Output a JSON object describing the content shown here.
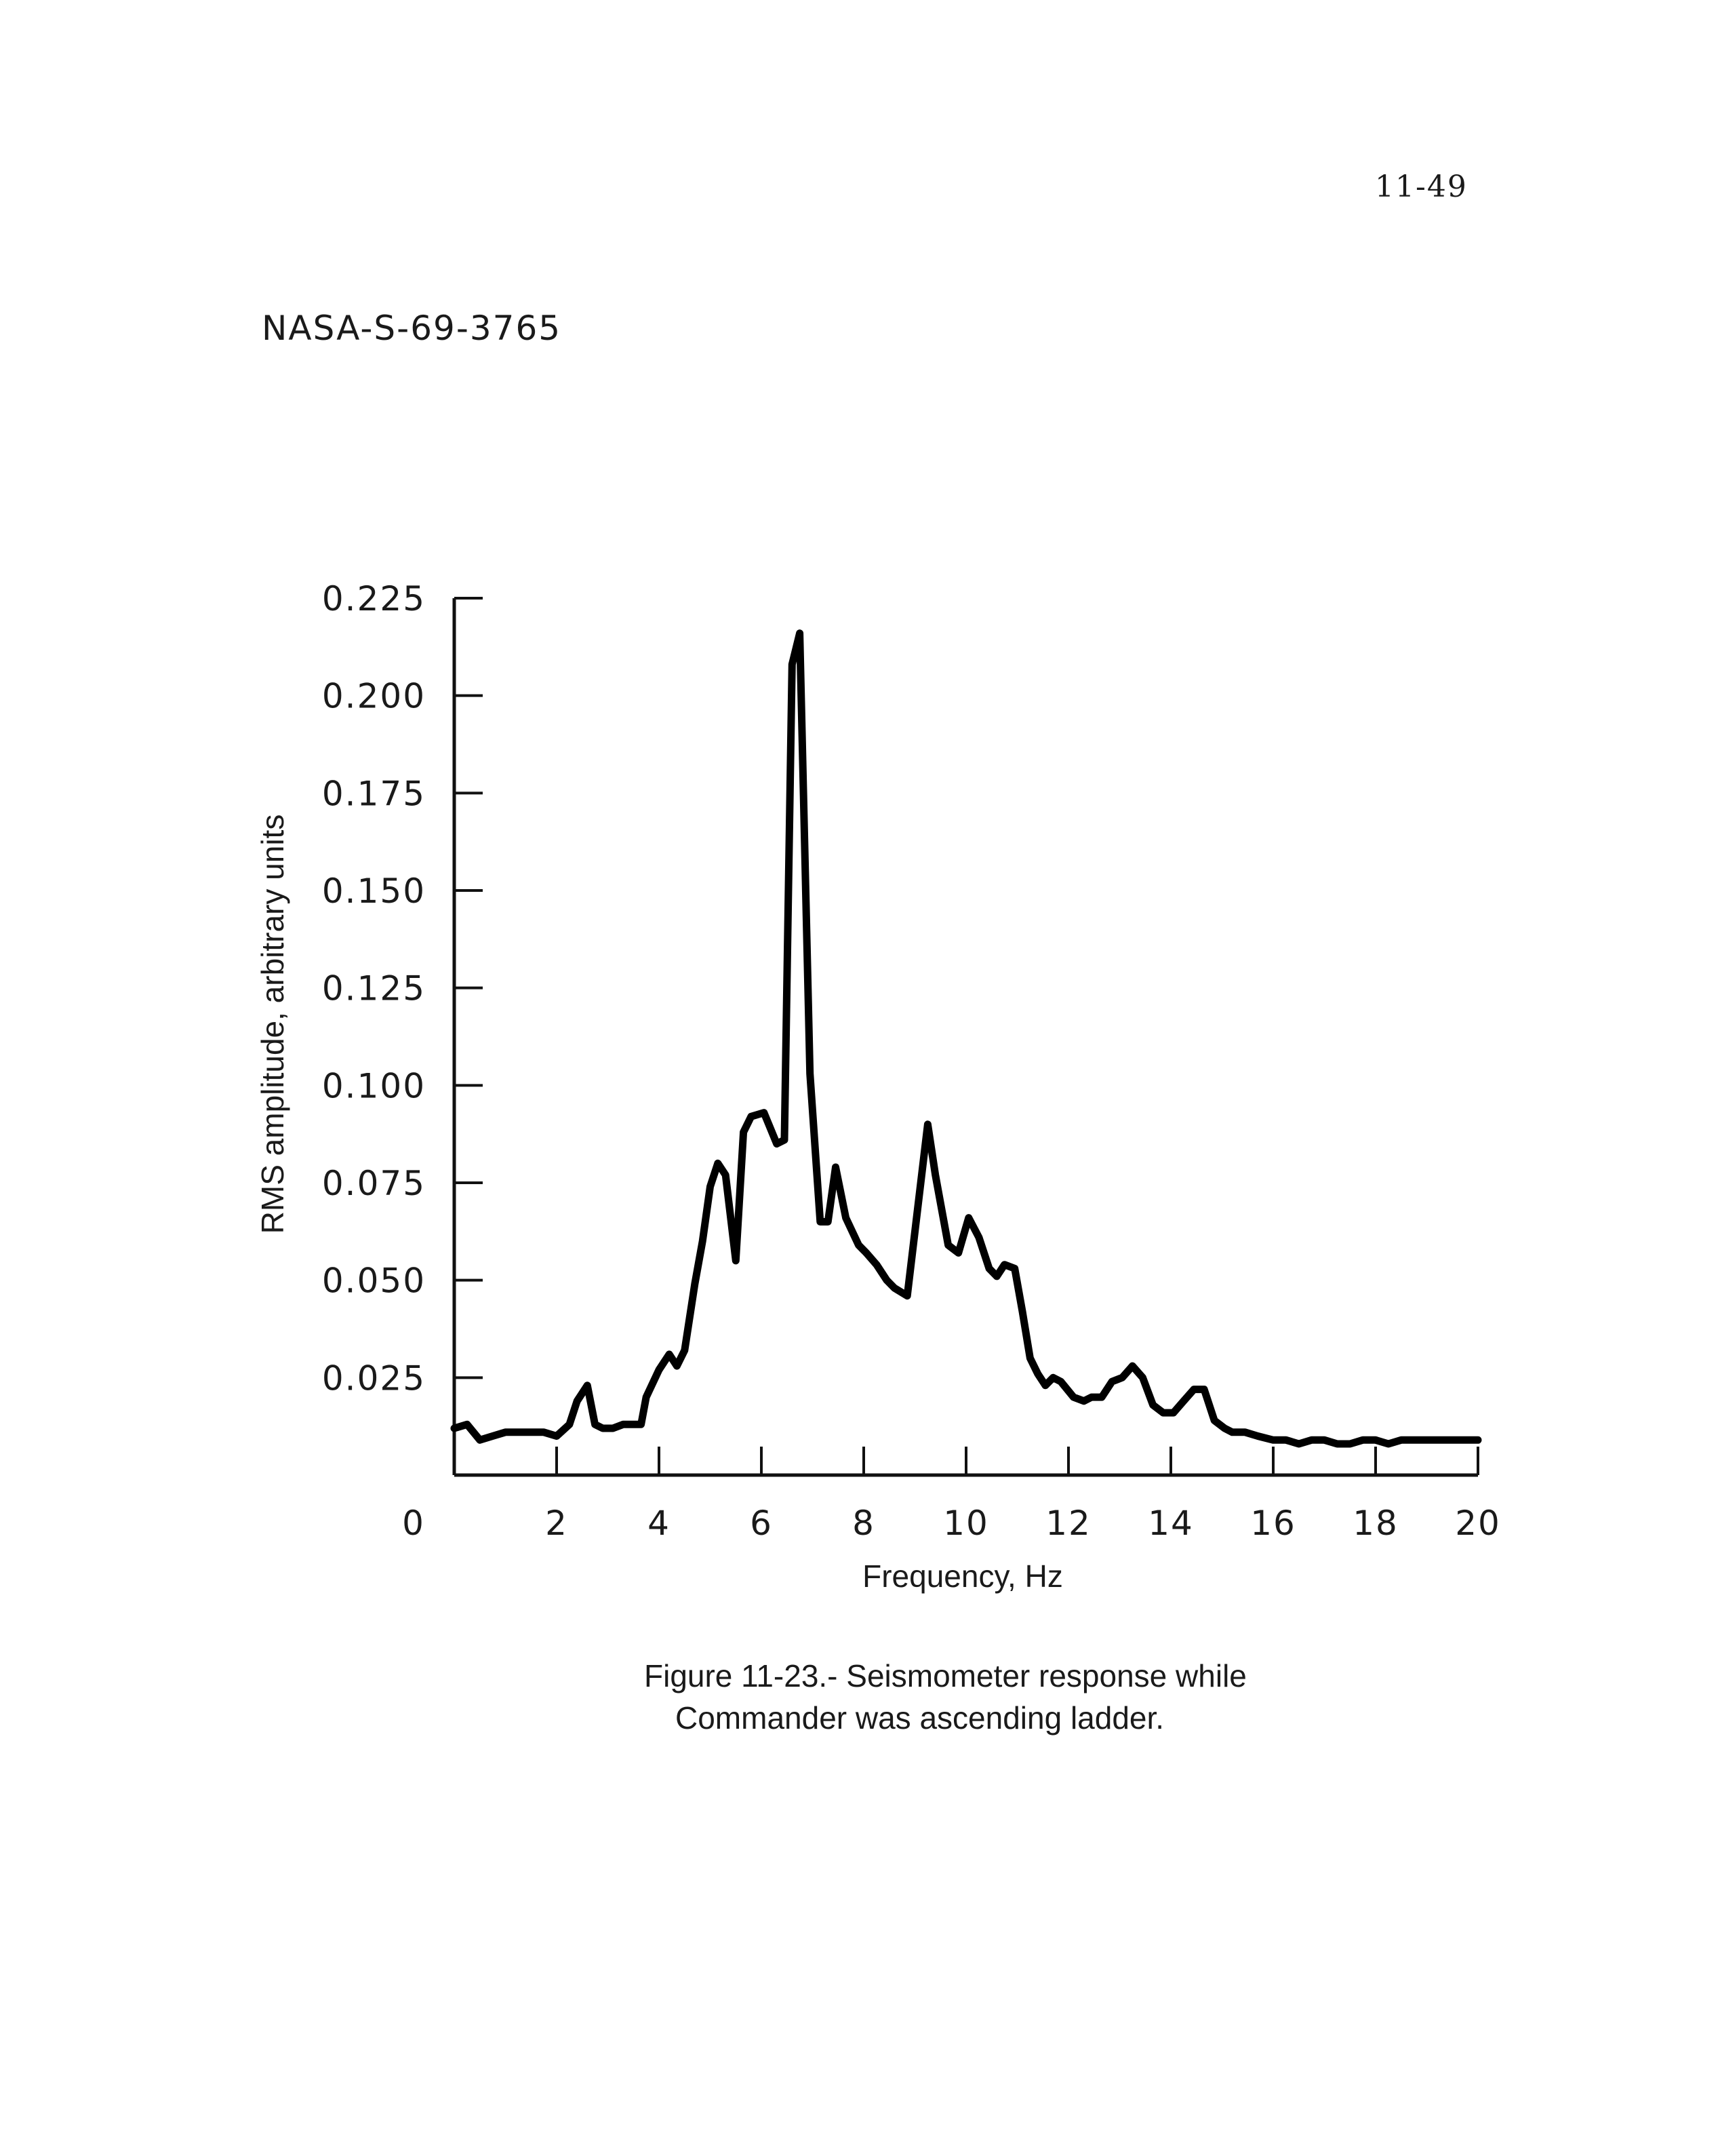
{
  "page": {
    "page_number": "11-49",
    "document_id": "NASA-S-69-3765",
    "caption_line1": "Figure 11-23.- Seismometer response while",
    "caption_line2": "Commander was ascending ladder."
  },
  "chart_data": {
    "type": "line",
    "title": "",
    "xlabel": "Frequency, Hz",
    "ylabel": "RMS amplitude, arbitrary units",
    "xlim": [
      0,
      20
    ],
    "ylim": [
      0,
      0.225
    ],
    "x_ticks": [
      0,
      2,
      4,
      6,
      8,
      10,
      12,
      14,
      16,
      18,
      20
    ],
    "x_tick_labels": [
      "0",
      "2",
      "4",
      "6",
      "8",
      "10",
      "12",
      "14",
      "16",
      "18",
      "20"
    ],
    "y_ticks": [
      0.025,
      0.05,
      0.075,
      0.1,
      0.125,
      0.15,
      0.175,
      0.2,
      0.225
    ],
    "y_tick_labels": [
      "0.025",
      "0.050",
      "0.075",
      "0.100",
      "0.125",
      "0.150",
      "0.175",
      "0.200",
      "0.225"
    ],
    "grid": false,
    "line_color": "#000000",
    "series": [
      {
        "x": [
          0.0,
          0.25,
          0.5,
          0.75,
          1.0,
          1.25,
          1.5,
          1.75,
          2.0,
          2.25,
          2.4,
          2.6,
          2.75,
          2.9,
          3.1,
          3.3,
          3.45,
          3.65,
          3.75,
          4.0,
          4.2,
          4.35,
          4.5,
          4.7,
          4.85,
          5.0,
          5.15,
          5.3,
          5.5,
          5.65,
          5.8,
          6.05,
          6.3,
          6.45,
          6.6,
          6.75,
          6.95,
          7.15,
          7.3,
          7.45,
          7.65,
          7.9,
          8.05,
          8.25,
          8.45,
          8.6,
          8.85,
          9.05,
          9.25,
          9.4,
          9.65,
          9.85,
          10.05,
          10.25,
          10.45,
          10.6,
          10.75,
          10.95,
          11.1,
          11.25,
          11.4,
          11.55,
          11.7,
          11.85,
          12.1,
          12.3,
          12.45,
          12.65,
          12.85,
          13.05,
          13.25,
          13.45,
          13.65,
          13.85,
          14.05,
          14.25,
          14.45,
          14.65,
          14.85,
          15.05,
          15.2,
          15.45,
          15.7,
          16.0,
          16.25,
          16.5,
          16.75,
          17.0,
          17.25,
          17.5,
          17.75,
          18.0,
          18.25,
          18.5,
          18.75,
          19.0,
          19.25,
          19.5,
          19.75,
          20.0
        ],
        "y": [
          0.012,
          0.013,
          0.009,
          0.01,
          0.011,
          0.011,
          0.011,
          0.011,
          0.01,
          0.013,
          0.019,
          0.023,
          0.013,
          0.012,
          0.012,
          0.013,
          0.013,
          0.013,
          0.02,
          0.027,
          0.031,
          0.028,
          0.032,
          0.049,
          0.06,
          0.074,
          0.08,
          0.077,
          0.055,
          0.088,
          0.092,
          0.093,
          0.085,
          0.086,
          0.208,
          0.216,
          0.103,
          0.065,
          0.065,
          0.079,
          0.066,
          0.059,
          0.057,
          0.054,
          0.05,
          0.048,
          0.046,
          0.068,
          0.09,
          0.077,
          0.059,
          0.057,
          0.066,
          0.061,
          0.053,
          0.051,
          0.054,
          0.053,
          0.042,
          0.03,
          0.026,
          0.023,
          0.025,
          0.024,
          0.02,
          0.019,
          0.02,
          0.02,
          0.024,
          0.025,
          0.028,
          0.025,
          0.018,
          0.016,
          0.016,
          0.019,
          0.022,
          0.022,
          0.014,
          0.012,
          0.011,
          0.011,
          0.01,
          0.009,
          0.009,
          0.008,
          0.009,
          0.009,
          0.008,
          0.008,
          0.009,
          0.009,
          0.008,
          0.009,
          0.009,
          0.009,
          0.009,
          0.009,
          0.009,
          0.009
        ]
      }
    ]
  }
}
